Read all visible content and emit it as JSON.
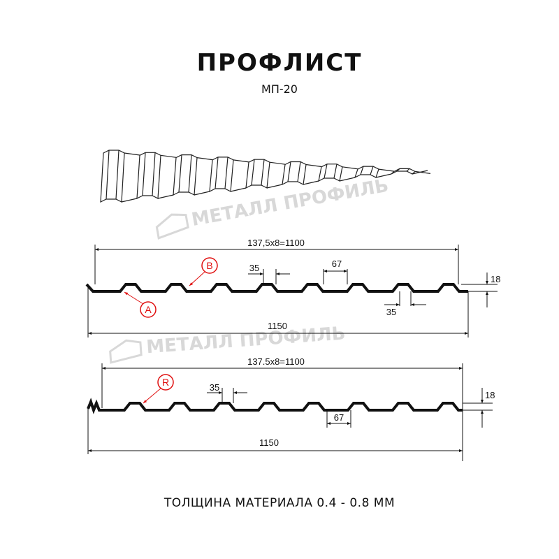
{
  "title": "ПРОФЛИСТ",
  "subtitle": "МП-20",
  "watermark": "МЕТАЛЛ ПРОФИЛЬ",
  "footer": "ТОЛЩИНА МАТЕРИАЛА 0.4 - 0.8 ММ",
  "colors": {
    "profile": "#111111",
    "callout": "#e01010",
    "watermark": "#d8d8d8"
  },
  "profile_a": {
    "pitch_dim": "137,5x8=1100",
    "width_dim": "1150",
    "height_dim": "18",
    "top_dim": "35",
    "bottom_dim": "67",
    "lower_dim": "35",
    "callouts": [
      "B",
      "A"
    ]
  },
  "profile_b": {
    "pitch_dim": "137.5x8=1100",
    "width_dim": "1150",
    "height_dim": "18",
    "top_dim": "35",
    "bottom_dim": "67",
    "callouts": [
      "R"
    ]
  }
}
